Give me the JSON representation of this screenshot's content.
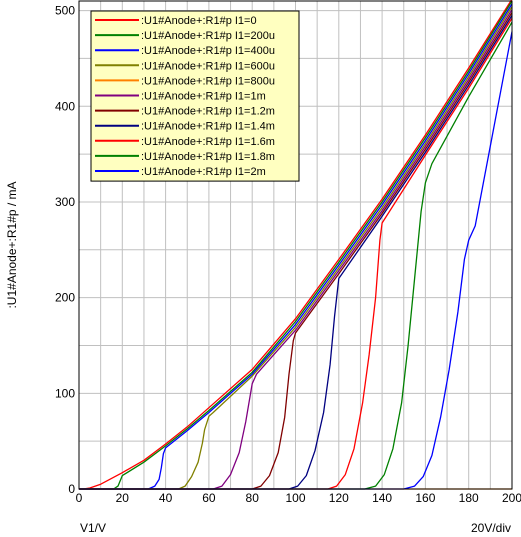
{
  "chart_data": {
    "type": "line",
    "ylabel": ":U1#Anode+:R1#p / mA",
    "xlabel": "V1/V",
    "x_division": "20V/div",
    "xlim": [
      0,
      200
    ],
    "ylim": [
      0,
      510
    ],
    "x_ticks": [
      "0",
      "20",
      "40",
      "60",
      "80",
      "100",
      "120",
      "140",
      "160",
      "180",
      "200"
    ],
    "y_ticks": [
      "0",
      "100",
      "200",
      "300",
      "400",
      "500"
    ],
    "grid": true,
    "legend_position": "top-left",
    "series": [
      {
        "name": ":U1#Anode+:R1#p I1=0",
        "color": "#ff0000",
        "points": [
          [
            0,
            0
          ],
          [
            2,
            0
          ],
          [
            5,
            1
          ],
          [
            10,
            5
          ],
          [
            20,
            17
          ],
          [
            30,
            30
          ],
          [
            40,
            47
          ],
          [
            50,
            65
          ],
          [
            60,
            85
          ],
          [
            80,
            125
          ],
          [
            100,
            178
          ],
          [
            120,
            240
          ],
          [
            140,
            303
          ],
          [
            160,
            370
          ],
          [
            180,
            440
          ],
          [
            200,
            512
          ]
        ]
      },
      {
        "name": ":U1#Anode+:R1#p I1=200u",
        "color": "#008000",
        "points": [
          [
            0,
            0
          ],
          [
            16,
            0
          ],
          [
            18,
            3
          ],
          [
            20,
            14
          ],
          [
            30,
            28
          ],
          [
            40,
            45
          ],
          [
            50,
            63
          ],
          [
            60,
            82
          ],
          [
            80,
            122
          ],
          [
            100,
            175
          ],
          [
            120,
            237
          ],
          [
            140,
            300
          ],
          [
            160,
            367
          ],
          [
            180,
            437
          ],
          [
            200,
            510
          ]
        ]
      },
      {
        "name": ":U1#Anode+:R1#p I1=400u",
        "color": "#0000ff",
        "points": [
          [
            0,
            0
          ],
          [
            32,
            0
          ],
          [
            35,
            3
          ],
          [
            37,
            10
          ],
          [
            38,
            22
          ],
          [
            39,
            37
          ],
          [
            40,
            43
          ],
          [
            50,
            61
          ],
          [
            60,
            80
          ],
          [
            80,
            120
          ],
          [
            100,
            172
          ],
          [
            120,
            234
          ],
          [
            140,
            297
          ],
          [
            160,
            364
          ],
          [
            180,
            434
          ],
          [
            200,
            507
          ]
        ]
      },
      {
        "name": ":U1#Anode+:R1#p I1=600u",
        "color": "#808000",
        "points": [
          [
            0,
            0
          ],
          [
            46,
            0
          ],
          [
            49,
            3
          ],
          [
            52,
            13
          ],
          [
            55,
            28
          ],
          [
            57,
            48
          ],
          [
            58,
            62
          ],
          [
            60,
            76
          ],
          [
            62,
            80
          ],
          [
            80,
            118
          ],
          [
            100,
            169
          ],
          [
            120,
            231
          ],
          [
            140,
            294
          ],
          [
            160,
            361
          ],
          [
            180,
            431
          ],
          [
            200,
            504
          ]
        ]
      },
      {
        "name": ":U1#Anode+:R1#p I1=800u",
        "color": "#ff8000",
        "points": [
          [
            0,
            0
          ],
          [
            200,
            0
          ]
        ]
      },
      {
        "name": ":U1#Anode+:R1#p I1=1m",
        "color": "#800080",
        "points": [
          [
            0,
            0
          ],
          [
            62,
            0
          ],
          [
            66,
            3
          ],
          [
            70,
            15
          ],
          [
            74,
            38
          ],
          [
            77,
            70
          ],
          [
            80,
            110
          ],
          [
            82,
            120
          ],
          [
            100,
            166
          ],
          [
            120,
            228
          ],
          [
            140,
            291
          ],
          [
            160,
            358
          ],
          [
            180,
            428
          ],
          [
            200,
            501
          ]
        ]
      },
      {
        "name": ":U1#Anode+:R1#p I1=1.2m",
        "color": "#800000",
        "points": [
          [
            0,
            0
          ],
          [
            80,
            0
          ],
          [
            84,
            3
          ],
          [
            88,
            14
          ],
          [
            92,
            38
          ],
          [
            95,
            75
          ],
          [
            97,
            120
          ],
          [
            99,
            155
          ],
          [
            100,
            163
          ],
          [
            120,
            225
          ],
          [
            140,
            288
          ],
          [
            160,
            355
          ],
          [
            180,
            425
          ],
          [
            200,
            498
          ]
        ]
      },
      {
        "name": ":U1#Anode+:R1#p I1=1.4m",
        "color": "#000080",
        "points": [
          [
            0,
            0
          ],
          [
            97,
            0
          ],
          [
            101,
            3
          ],
          [
            105,
            14
          ],
          [
            109,
            40
          ],
          [
            113,
            80
          ],
          [
            116,
            130
          ],
          [
            118,
            180
          ],
          [
            120,
            220
          ],
          [
            140,
            285
          ],
          [
            160,
            352
          ],
          [
            180,
            422
          ],
          [
            200,
            495
          ]
        ]
      },
      {
        "name": ":U1#Anode+:R1#p I1=1.6m",
        "color": "#ff0000",
        "points": [
          [
            0,
            0
          ],
          [
            115,
            0
          ],
          [
            119,
            3
          ],
          [
            123,
            15
          ],
          [
            127,
            42
          ],
          [
            131,
            90
          ],
          [
            134,
            140
          ],
          [
            137,
            200
          ],
          [
            139,
            260
          ],
          [
            140,
            278
          ],
          [
            160,
            349
          ],
          [
            180,
            419
          ],
          [
            200,
            492
          ]
        ]
      },
      {
        "name": ":U1#Anode+:R1#p I1=1.8m",
        "color": "#008000",
        "points": [
          [
            0,
            0
          ],
          [
            132,
            0
          ],
          [
            137,
            3
          ],
          [
            141,
            15
          ],
          [
            145,
            42
          ],
          [
            149,
            90
          ],
          [
            152,
            150
          ],
          [
            155,
            220
          ],
          [
            158,
            290
          ],
          [
            160,
            320
          ],
          [
            163,
            340
          ],
          [
            180,
            410
          ],
          [
            200,
            488
          ]
        ]
      },
      {
        "name": ":U1#Anode+:R1#p I1=2m",
        "color": "#0000ff",
        "points": [
          [
            0,
            0
          ],
          [
            150,
            0
          ],
          [
            155,
            3
          ],
          [
            159,
            13
          ],
          [
            163,
            35
          ],
          [
            167,
            75
          ],
          [
            171,
            125
          ],
          [
            175,
            185
          ],
          [
            178,
            240
          ],
          [
            180,
            260
          ],
          [
            183,
            275
          ],
          [
            200,
            478
          ]
        ]
      }
    ],
    "legend_order": [
      0,
      1,
      2,
      3,
      4,
      5,
      6,
      7,
      8,
      9,
      10
    ],
    "colors": {
      "plot_background": "#ffffff",
      "grid": "#c0c0c0",
      "axis": "#000000",
      "legend_background": "#ffffc0"
    }
  }
}
